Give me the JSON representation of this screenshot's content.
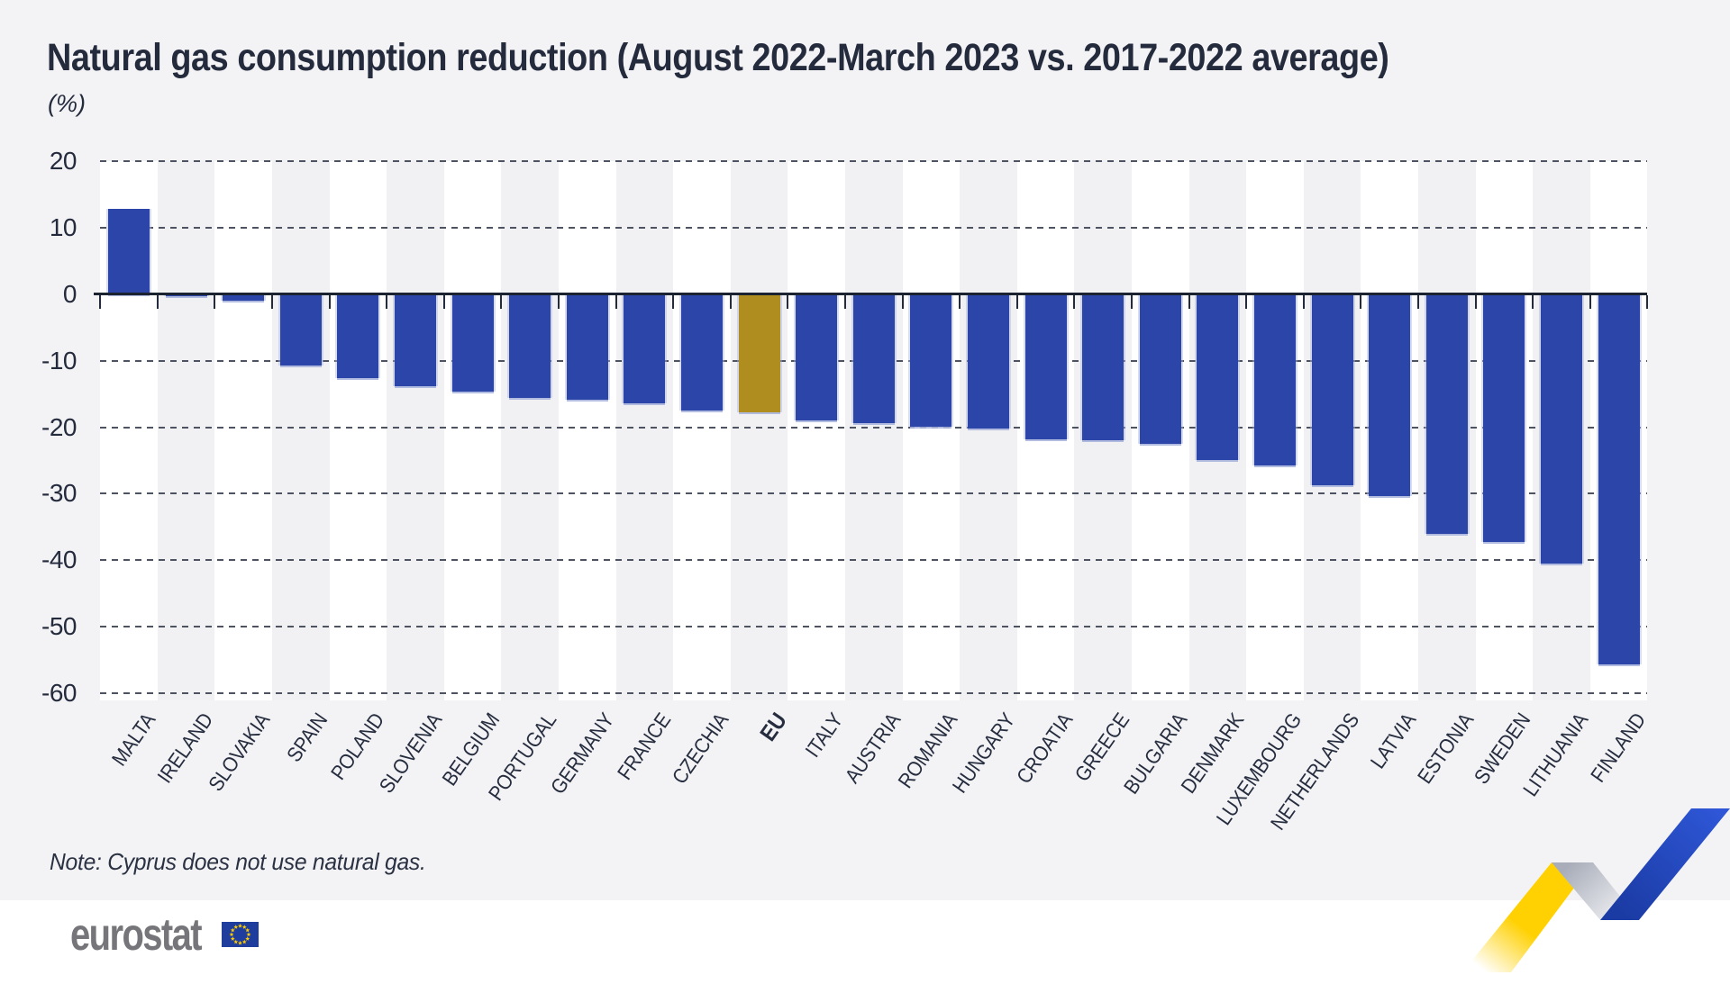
{
  "chart_data": {
    "type": "bar",
    "title": "Natural gas consumption reduction (August 2022-March 2023 vs. 2017-2022 average)",
    "unit_label": "(%)",
    "note": "Note: Cyprus does not use natural gas.",
    "categories": [
      "MALTA",
      "IRELAND",
      "SLOVAKIA",
      "SPAIN",
      "POLAND",
      "SLOVENIA",
      "BELGIUM",
      "PORTUGAL",
      "GERMANY",
      "FRANCE",
      "CZECHIA",
      "EU",
      "ITALY",
      "AUSTRIA",
      "ROMANIA",
      "HUNGARY",
      "CROATIA",
      "GREECE",
      "BULGARIA",
      "DENMARK",
      "LUXEMBOURG",
      "NETHERLANDS",
      "LATVIA",
      "ESTONIA",
      "SWEDEN",
      "LITHUANIA",
      "FINLAND"
    ],
    "values": [
      12.8,
      -0.3,
      -1.0,
      -10.7,
      -12.6,
      -13.8,
      -14.6,
      -15.6,
      -15.9,
      -16.4,
      -17.5,
      -17.7,
      -19.0,
      -19.4,
      -19.9,
      -20.2,
      -21.8,
      -22.0,
      -22.5,
      -24.9,
      -25.7,
      -28.7,
      -30.3,
      -36.1,
      -37.2,
      -40.5,
      -55.7
    ],
    "highlight_category": "EU",
    "yticks": [
      20,
      10,
      0,
      -10,
      -20,
      -30,
      -40,
      -50,
      -60
    ],
    "ylim": [
      -60,
      20
    ],
    "grid": "horizontal-dashed",
    "legend": "none",
    "colors": {
      "bar": "#2b45a8",
      "bar_highlight": "#af8d1f",
      "bar_edge": "#aab4dd",
      "background": "#f3f3f5",
      "column_white": "#ffffff",
      "column_gray": "#f1f1f4",
      "gridline": "#4e5361",
      "zero_line": "#1c2330",
      "text": "#242b3d"
    }
  },
  "footer": {
    "logo_text": "eurostat",
    "flag_icon": "eu-flag-icon",
    "flag_blue": "#1f3d9c",
    "star_yellow": "#ffcc00"
  },
  "decoration": {
    "ribbon_icon": "zigzag-trend-ribbon",
    "yellow": "#ffd103",
    "gray_from": "#a8adb9",
    "gray_to": "#f0f1f4",
    "blue_from": "#1b3ba4",
    "blue_to": "#2e56d6"
  }
}
